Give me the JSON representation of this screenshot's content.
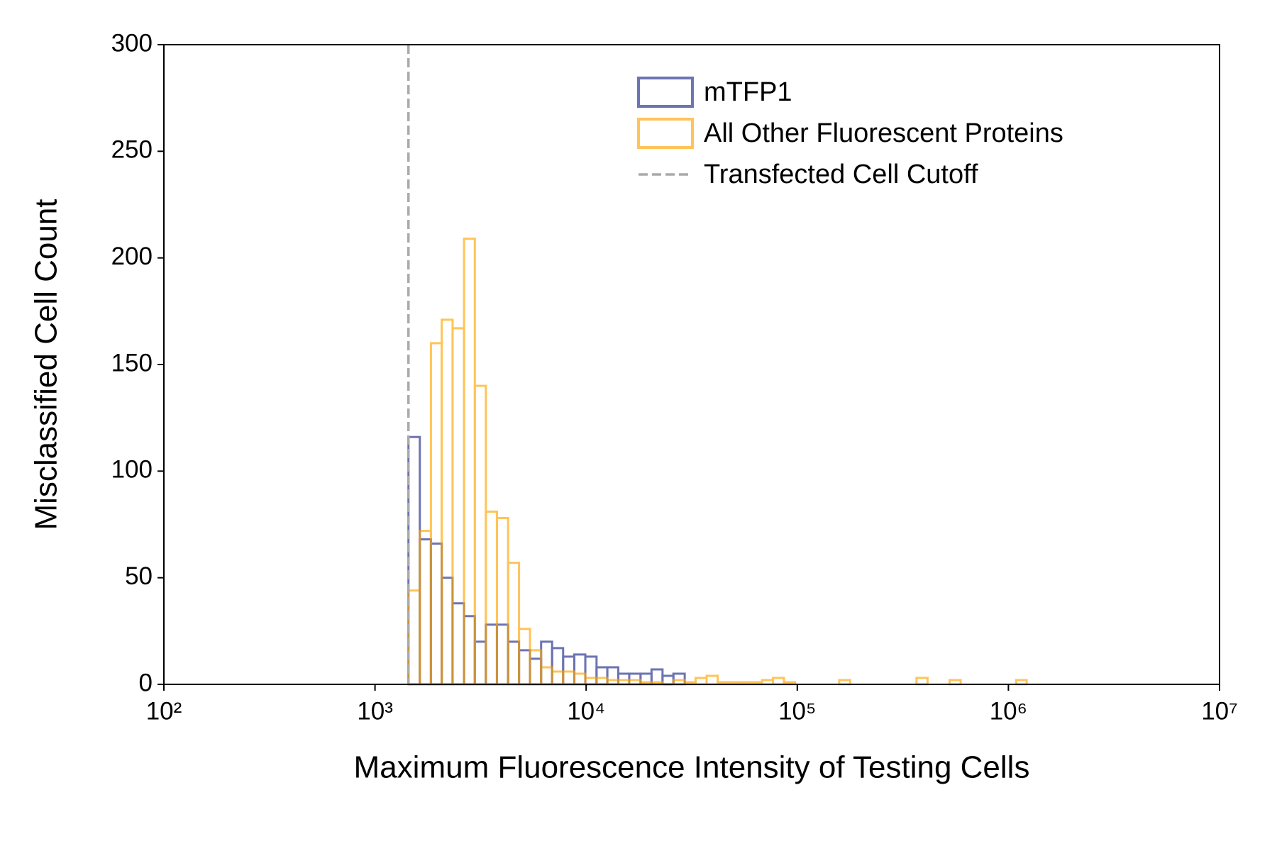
{
  "chart_data": {
    "type": "histogram",
    "xlabel": "Maximum Fluorescence Intensity of Testing Cells",
    "ylabel": "Misclassified Cell Count",
    "log_x": true,
    "xlim": [
      100,
      10000000
    ],
    "ylim": [
      0,
      300
    ],
    "xticks": [
      {
        "value": 100,
        "label": "10²"
      },
      {
        "value": 1000,
        "label": "10³"
      },
      {
        "value": 10000,
        "label": "10⁴"
      },
      {
        "value": 100000,
        "label": "10⁵"
      },
      {
        "value": 1000000,
        "label": "10⁶"
      },
      {
        "value": 10000000,
        "label": "10⁷"
      }
    ],
    "yticks": [
      0,
      50,
      100,
      150,
      200,
      250,
      300
    ],
    "legend": "upper center",
    "bins": [
      1440,
      1630,
      1840,
      2070,
      2330,
      2640,
      2970,
      3350,
      3780,
      4270,
      4810,
      5420,
      6120,
      6900,
      7780,
      8790,
      9910,
      11200,
      12600,
      14200,
      16000,
      18100,
      20400,
      23000,
      25900,
      29300,
      33000,
      37200,
      42000,
      47400,
      53500,
      60300,
      68100,
      76700,
      86500,
      97700,
      110000,
      124000,
      140000,
      158000,
      178000,
      201000,
      227000,
      256000,
      288000,
      326000,
      367000,
      414000,
      467000,
      527000,
      594000,
      670000,
      757000,
      853000,
      962000,
      1090000,
      1220000,
      1380000
    ],
    "series": [
      {
        "name": "mTFP1",
        "color": "#1f2a8a",
        "values": [
          116,
          68,
          66,
          50,
          38,
          32,
          20,
          28,
          28,
          20,
          16,
          12,
          20,
          17,
          13,
          14,
          13,
          8,
          8,
          5,
          5,
          5,
          7,
          4,
          5,
          0,
          0,
          0,
          0,
          0,
          0,
          0,
          0,
          0,
          0,
          0,
          0,
          0,
          0,
          0,
          0,
          0,
          0,
          0,
          0,
          0,
          0,
          0,
          0,
          0,
          0,
          0,
          0,
          0,
          0,
          0,
          0
        ]
      },
      {
        "name": "All Other Fluorescent Proteins",
        "color": "#ffa500",
        "values": [
          44,
          72,
          160,
          171,
          167,
          209,
          140,
          81,
          78,
          57,
          26,
          16,
          8,
          6,
          6,
          5,
          3,
          3,
          2,
          2,
          2,
          1,
          1,
          0,
          2,
          1,
          3,
          4,
          1,
          1,
          1,
          1,
          2,
          3,
          1,
          0,
          0,
          0,
          0,
          2,
          0,
          0,
          0,
          0,
          0,
          0,
          3,
          0,
          0,
          2,
          0,
          0,
          0,
          0,
          0,
          2,
          0
        ]
      }
    ],
    "cutoff": {
      "value": 1440,
      "label": "Transfected Cell Cutoff",
      "color": "#aaaaaa"
    }
  }
}
